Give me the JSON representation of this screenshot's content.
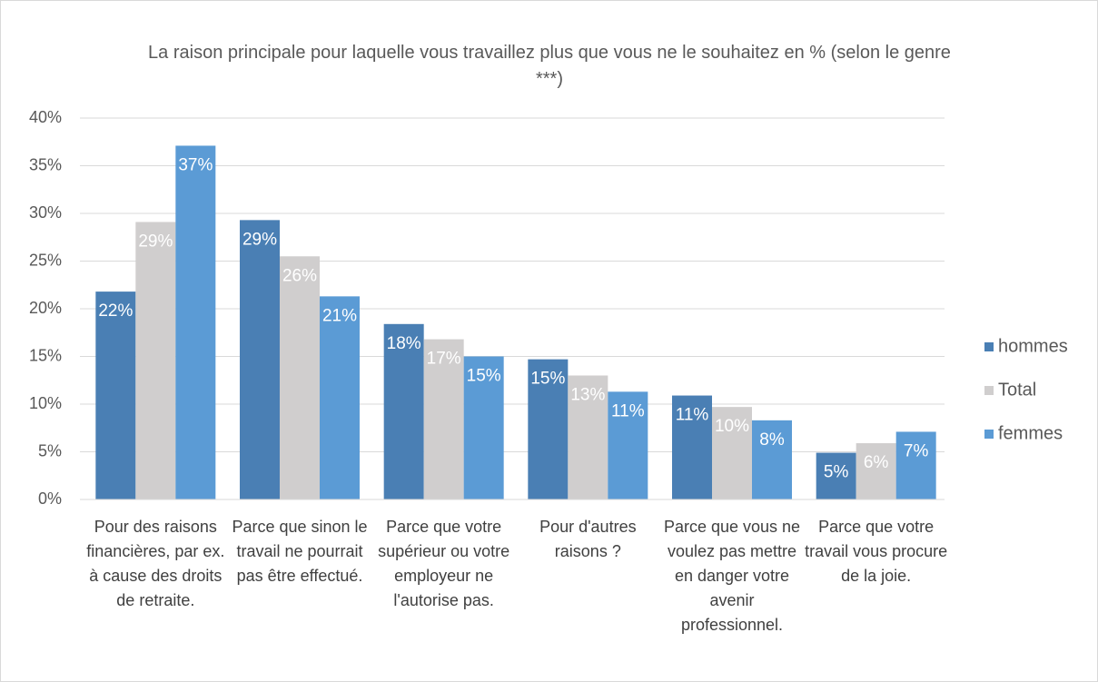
{
  "chart_data": {
    "type": "bar",
    "title": "La raison principale pour laquelle vous travaillez plus que vous ne le souhaitez en % (selon le genre ***)",
    "categories": [
      "Pour des raisons financières, par ex. à cause des droits de retraite.",
      "Parce que sinon le travail ne pourrait pas être effectué.",
      "Parce que votre supérieur ou votre employeur ne l'autorise pas.",
      "Pour d'autres raisons ?",
      "Parce que vous ne voulez pas mettre en danger votre avenir professionnel.",
      "Parce que votre travail vous procure de la joie."
    ],
    "series": [
      {
        "name": "hommes",
        "color": "#4a7fb4",
        "values": [
          21.8,
          29.3,
          18.4,
          14.7,
          10.9,
          4.9
        ],
        "value_labels": [
          "22%",
          "29%",
          "18%",
          "15%",
          "11%",
          "5%"
        ]
      },
      {
        "name": "Total",
        "color": "#d0cece",
        "values": [
          29.1,
          25.5,
          16.8,
          13.0,
          9.7,
          5.9
        ],
        "value_labels": [
          "29%",
          "26%",
          "17%",
          "13%",
          "10%",
          "6%"
        ]
      },
      {
        "name": "femmes",
        "color": "#5b9bd5",
        "values": [
          37.1,
          21.3,
          15.0,
          11.3,
          8.3,
          7.1
        ],
        "value_labels": [
          "37%",
          "21%",
          "15%",
          "11%",
          "8%",
          "7%"
        ]
      }
    ],
    "ylim": [
      0,
      40
    ],
    "yticks": [
      {
        "value": 0,
        "label": "0%"
      },
      {
        "value": 5,
        "label": "5%"
      },
      {
        "value": 10,
        "label": "10%"
      },
      {
        "value": 15,
        "label": "15%"
      },
      {
        "value": 20,
        "label": "20%"
      },
      {
        "value": 25,
        "label": "25%"
      },
      {
        "value": 30,
        "label": "30%"
      },
      {
        "value": 35,
        "label": "35%"
      },
      {
        "value": 40,
        "label": "40%"
      }
    ],
    "grid": true,
    "legend": "right"
  }
}
